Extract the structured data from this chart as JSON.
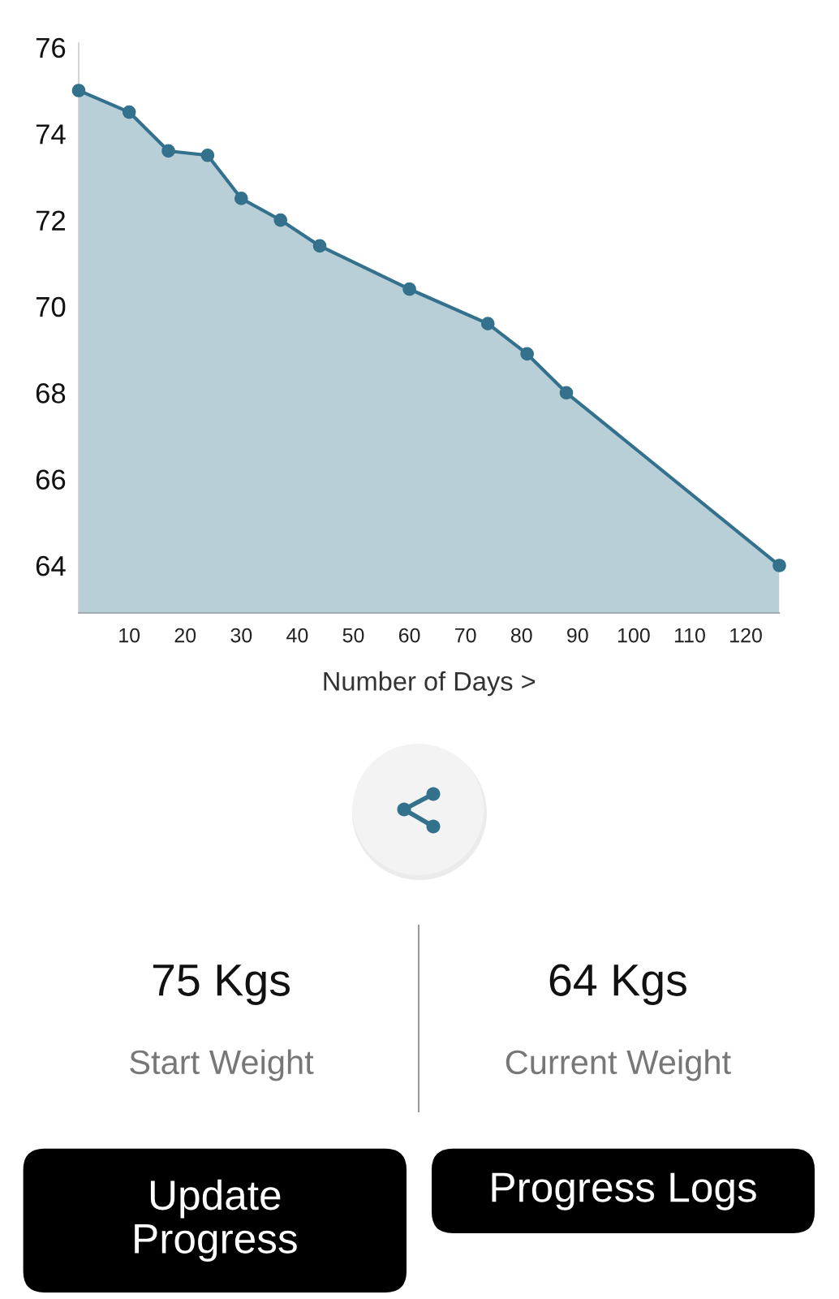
{
  "chart_data": {
    "type": "area",
    "xlabel": "Number of Days >",
    "x": [
      1,
      10,
      17,
      24,
      30,
      37,
      44,
      60,
      74,
      81,
      88,
      126
    ],
    "values": [
      75,
      74.5,
      73.6,
      73.5,
      72.5,
      72,
      71.4,
      70.4,
      69.6,
      68.9,
      68,
      64
    ],
    "color": "#33718d",
    "marker": "circle",
    "line_style": "solid",
    "grid": false,
    "xlim": [
      1,
      126
    ],
    "ylim": [
      62.9,
      76.1
    ],
    "xticks": [
      10,
      20,
      30,
      40,
      50,
      60,
      70,
      80,
      90,
      100,
      110,
      120
    ],
    "yticks": [
      64,
      66,
      68,
      70,
      72,
      74,
      76
    ],
    "annotations": [
      "75 Kgs",
      "Start Weight",
      "64 Kgs",
      "Current Weight",
      "Update Progress",
      "Progress Logs"
    ]
  }
}
